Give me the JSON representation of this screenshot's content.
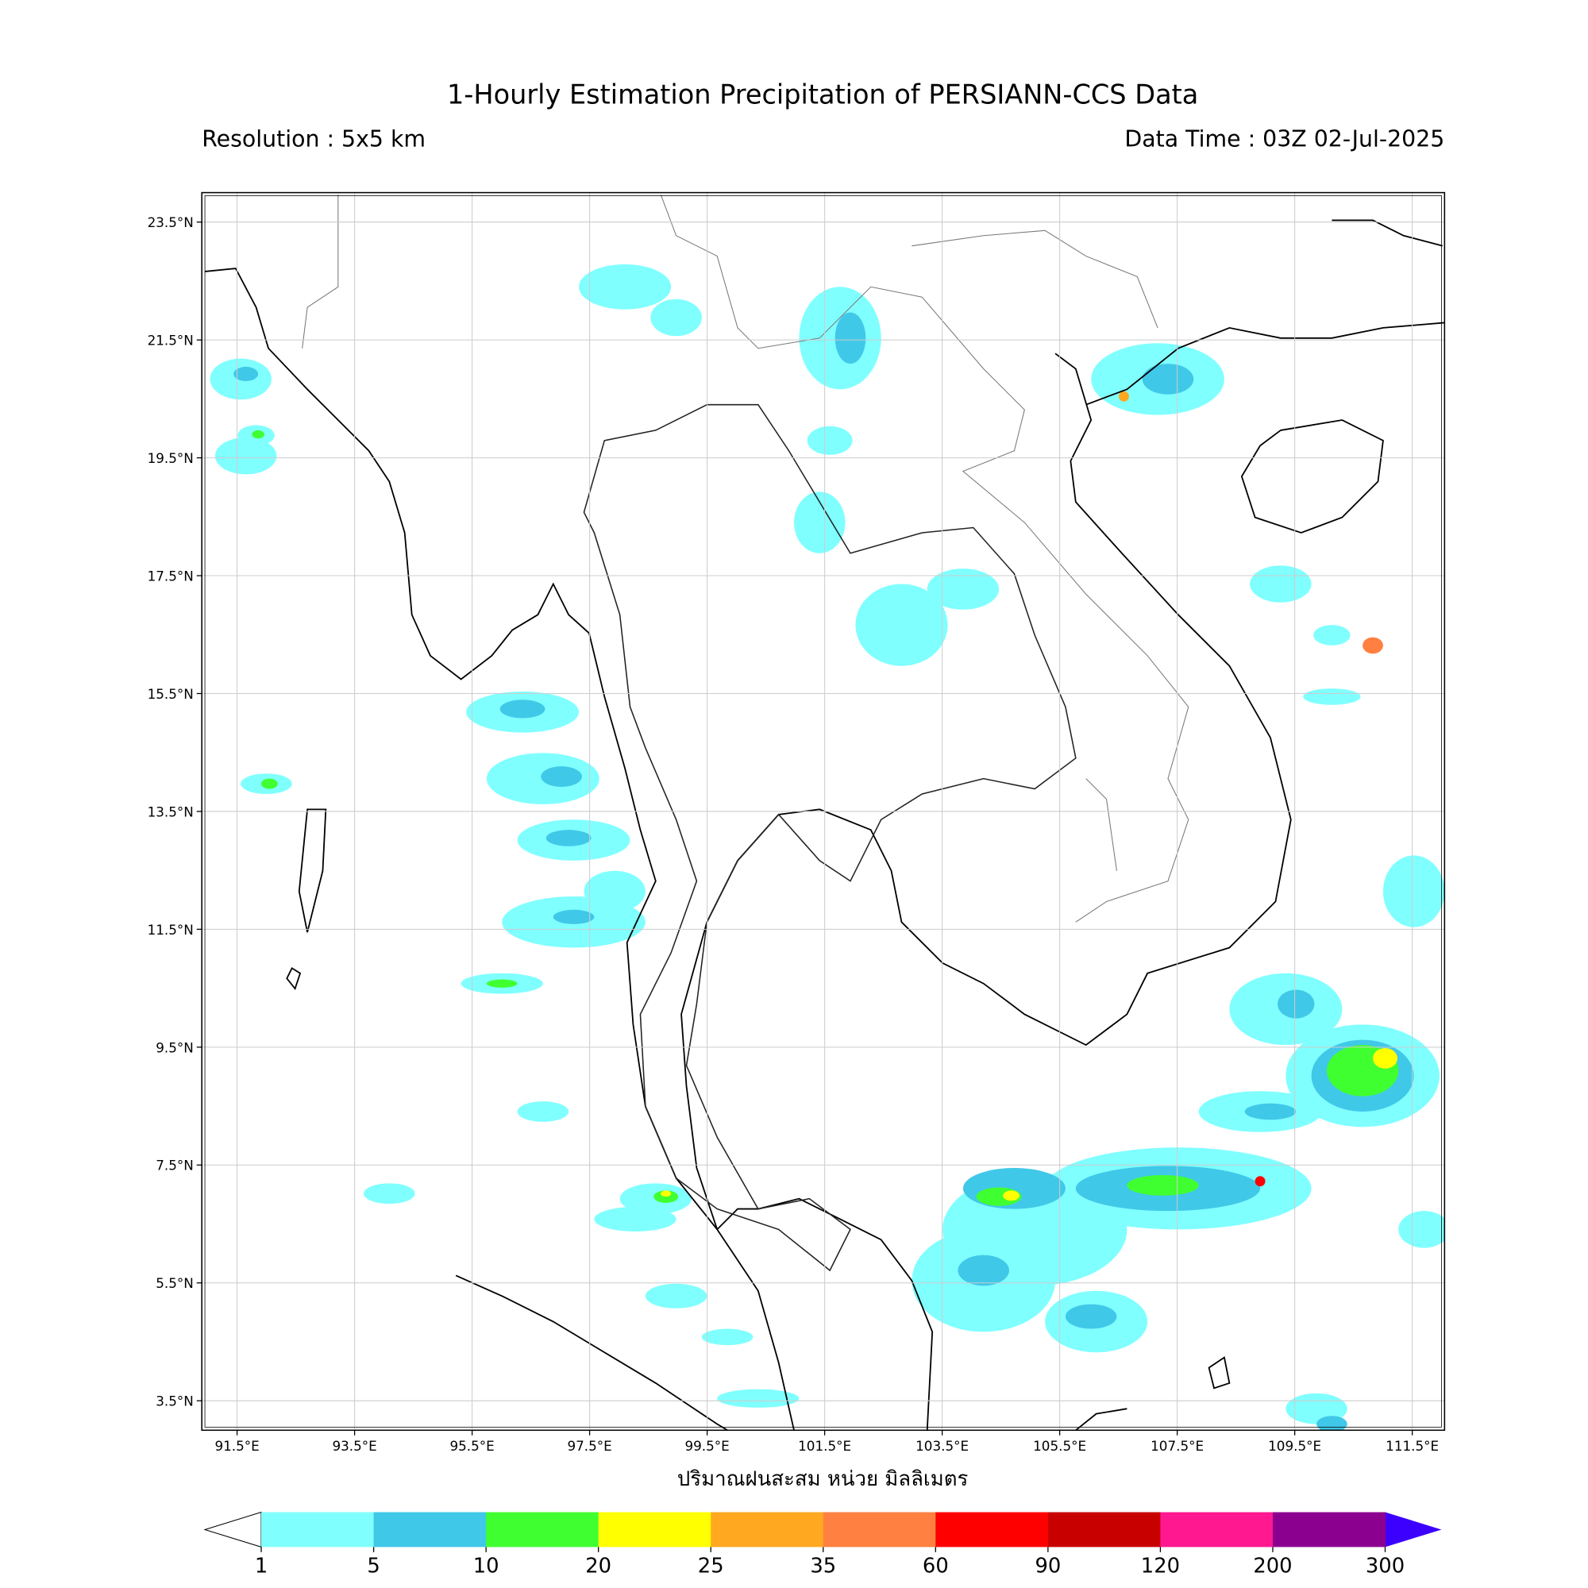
{
  "header": {
    "title": "1-Hourly Estimation Precipitation of PERSIANN-CCS Data",
    "resolution": "Resolution : 5x5 km",
    "data_time": "Data Time : 03Z 02-Jul-2025"
  },
  "map": {
    "lonlim": [
      90.9,
      112.05
    ],
    "latlim": [
      3.0,
      24.0
    ],
    "lon_ticks": [
      {
        "value": 91.5,
        "label": "91.5°E"
      },
      {
        "value": 93.5,
        "label": "93.5°E"
      },
      {
        "value": 95.5,
        "label": "95.5°E"
      },
      {
        "value": 97.5,
        "label": "97.5°E"
      },
      {
        "value": 99.5,
        "label": "99.5°E"
      },
      {
        "value": 101.5,
        "label": "101.5°E"
      },
      {
        "value": 103.5,
        "label": "103.5°E"
      },
      {
        "value": 105.5,
        "label": "105.5°E"
      },
      {
        "value": 107.5,
        "label": "107.5°E"
      },
      {
        "value": 109.5,
        "label": "109.5°E"
      },
      {
        "value": 111.5,
        "label": "111.5°E"
      }
    ],
    "lat_ticks": [
      {
        "value": 23.5,
        "label": "23.5°N"
      },
      {
        "value": 21.5,
        "label": "21.5°N"
      },
      {
        "value": 19.5,
        "label": "19.5°N"
      },
      {
        "value": 17.5,
        "label": "17.5°N"
      },
      {
        "value": 15.5,
        "label": "15.5°N"
      },
      {
        "value": 13.5,
        "label": "13.5°N"
      },
      {
        "value": 11.5,
        "label": "11.5°N"
      },
      {
        "value": 9.5,
        "label": "9.5°N"
      },
      {
        "value": 7.5,
        "label": "7.5°N"
      },
      {
        "value": 5.5,
        "label": "5.5°N"
      },
      {
        "value": 3.5,
        "label": "3.5°N"
      }
    ],
    "xlabel": "ปริมาณฝนสะสม หน่วย มิลลิเมตร"
  },
  "colorbar": {
    "ticks": [
      1,
      5,
      10,
      20,
      25,
      35,
      60,
      90,
      120,
      200,
      300
    ],
    "colors": [
      "#80ffff",
      "#40c8e8",
      "#40ff30",
      "#ffff00",
      "#ffa820",
      "#ff8040",
      "#ff0000",
      "#c80000",
      "#ff1890",
      "#8c0090"
    ],
    "under_color": "#ffffff",
    "over_color": "#3c00ff"
  }
}
